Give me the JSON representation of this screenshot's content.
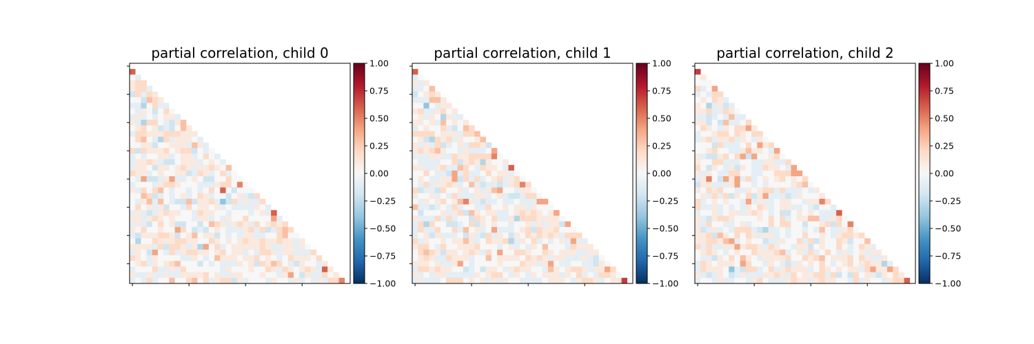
{
  "chart_data": [
    {
      "type": "heatmap",
      "title": "partial correlation, child 0",
      "matrix_size": 39,
      "shape": "strictly lower triangular",
      "x_ticks": [
        0,
        10,
        20,
        30
      ],
      "y_ticks": [
        0,
        5,
        10,
        15,
        20,
        25,
        30,
        35
      ],
      "rows": [
        "L",
        "FE",
        "GHH",
        "GHHE",
        "DHEHG",
        "FFDIHG",
        "EECFHEE",
        "FEGFDFHF",
        "EGEFEFGGE",
        "GECHHFEDGI",
        "FGHFGDEDFIG",
        "EHHGGGHHHGGG",
        "FHIFECHEGGGFE",
        "FFGGDFFGGGEIGE",
        "HDHGGGHFGHHDFEF",
        "EFEFFGGEFGGEFHFE",
        "EGGHGEDDFGGGEFGFE",
        "EGGFDGGFGHGEGGHGFI",
        "HGGEFGFFGGDEHGEFHEF",
        "FEJDDEGJEEFGFDDFFHFF",
        "EFFFEGHHGFFFEEEGHHFKF",
        "GEHFHIFEFFEFEFHFLFDFFF",
        "FFIHDEFEFGEFHGEFFDFGEDH",
        "FEGIEIFEDDIDGGHEBDHEGEEH",
        "FHFGEGDFFEHFGGFGEFEEEEGFE",
        "EGEDEGHGGFFEHGGFFEFFFEFGEL",
        "GGEGHGFGFFFEGGEFEGFFHFFFFJE",
        "EGEDFHFGDDFFDFIHGEGHGEHFGHGH",
        "GFHFFGFFJHFDEDFGFEEEGHEHDEHIH",
        "EDGGGHHGDFGIFGGDFEFEGGEEFFHIFF",
        "FCFFHGGGHHGGFFHGFGFGHGGHGGHGGEG",
        "GGGGEHDHHGEGCJFHEFGGGGGHGEEGGEGF",
        "EGFDJFEHEGHHGGFGHFGGEFEHHGEGGEEEH",
        "HGFEGFFFFEEGFEFIGGGFGGHFGFEFHGGGFH",
        "FGHEGFGHIFFFDFEFEEEGFGDHGIHFEDGFFEG",
        "EFFFHEEGEHFFFFFFEGFFFGFFHGEHGFGHGELG",
        "GEEGEEGEEGGGGHFGEEGGFFFGFFEGJFDGEEHFG",
        "EFEHEFFIFFHIFHEGHHDGEFFFEGFFEGEFEGEHHK"
      ]
    },
    {
      "type": "heatmap",
      "title": "partial correlation, child 1",
      "matrix_size": 39,
      "shape": "strictly lower triangular",
      "x_ticks": [
        0,
        10,
        20,
        30
      ],
      "y_ticks": [
        0,
        5,
        10,
        15,
        20,
        25,
        30,
        35
      ],
      "rows": [
        "L",
        "EF",
        "GEG",
        "EEFI",
        "DFGHG",
        "EEEIIG",
        "FFBFEGG",
        "GHEEGHFG",
        "FGEGFCGEE",
        "GGFGEIFGFG",
        "EFGFFHEDFIH",
        "HHHHFGGGEHHI",
        "FGDCHGHEGFFGI",
        "GEGEHDEFGEHHGD",
        "GHGHIGFFEGEEEFJ",
        "EEEGGEEHGGHHHHKF",
        "FEEEEFFHDGHGCGFFG",
        "GGEEGHEEIHFEHGGFEL",
        "FFHFEEDJEHEEFHFGGEF",
        "FGFEEGGJDHEHEFGHEGHF",
        "FEHEGGHGEFIEDEEDEGHKH",
        "HDEEDHFFGEFGEGIJFFEGGF",
        "GFFGEFEHEEEGGEFGEDDEHHF",
        "FEGFGHFGIKGEDEEFEEFEEEJJ",
        "IEEDEFEHEFFEEHFFGFGGEGFFF",
        "FDFFFGEGHDIGFGGEEFGHGHGFGJ",
        "GEEEHEHEFFDHGFHEEGCHHHGGGGF",
        "EHCHFFDDEFHDGFGFFEFFGEGEGGDJ",
        "EHEEHFFHEIFGEFJEEEFGHDHGGHFFF",
        "EFGDGEEEFDGEDHEGFDGFHGHGHGEHHH",
        "HEGFFGFGGIGEFHGGHCEGFHEFEFGEJEE",
        "GHHFEHFFGGGHFFFEFGEFEGFIFFFEHGGG",
        "FHIHGDGGFGHGEHFJFFHHGFFHGFGGGEEGG",
        "FGHGEEHGGGEFFIFGGGGFHGHGEGGEEEGEDF",
        "GGGFGEEGJFEFFFFGFFFHGGEGJFEEFFEEDGF",
        "EHHGHGGFFDEFDGGFEGHGGFFEIGFGHHGEGGJH",
        "GEFEGGEEEEEGFGHHFEGFEGFGGGEGFHEFEHHGF",
        "EGEEEFHHHFGFGEGEGFFEEEEFGGGFEGHHGEFGGM"
      ]
    },
    {
      "type": "heatmap",
      "title": "partial correlation, child 2",
      "matrix_size": 39,
      "shape": "strictly lower triangular",
      "x_ticks": [
        0,
        10,
        20,
        30
      ],
      "y_ticks": [
        0,
        5,
        10,
        15,
        20,
        25,
        30,
        35
      ],
      "rows": [
        "M",
        "FG",
        "FFF",
        "HEFJ",
        "EFEHH",
        "FGFHGE",
        "GFCEGDE",
        "GGHEEHGF",
        "EEDEFEIEE",
        "GGDFDIEEFH",
        "FHGFEGFHHJG",
        "EFFGHHFHGFHH",
        "EGHEGGHEGFEGF",
        "FFFDHEEEFHFJGH",
        "FFGHFFEEGIGGFEJ",
        "GEDDGHFHJDJFFGHF",
        "GFFHHEEEFFEEGGEEH",
        "HFDGFEGDGFEEHGGFEJ",
        "GEGFEEHHFFEEFFHHHJJ",
        "EGKFDJGJEHEFGFGHFGFH",
        "DGGEEEGJFFEFEFFFFGHIF",
        "GFHGHFFEEGFGHHEHEEEFEG",
        "FGEHEHDGFHDGJEEEDEGFFFG",
        "HEFGFGFFEJEGEEFGGFFEGGKH",
        "HEEGEFEFEGFHGEFGGEEFEDFFE",
        "EFFGEFGGEGHGFEFDDFGFGFEEEL",
        "GEDGHHGFFFFGFHFHEFGGIIEEGH",
        "GEHFFEEFGEFFFHFHHFFDFFGHDHFK",
        "GDEGEFEHHHEDCEEFEFFEFEIFEEGHF",
        "GGHDIGFHFHGEGGEFEFFHFFGFEGHHGH",
        "GGHHGIJEFGFFDEEGFFHEHDGFFHGDFFI",
        "HEHEEGGJGHHGEHGFFEGGDFGFFHFEFHGE",
        "FGHGFEFGFFHGGGHIEFGEHEFHFEGEFGEGG",
        "FEEDGFHFIGFEGGGGHFFHGHIFGGGHFHGEEG",
        "EHGFGGGFJHFFEGFEDEGFGFHFEFGHFGHGGCE",
        "EHGGGFBEDHHEFHEGHGGGEFHGFGFGGEHJGGJH",
        "GEDEGFDEGEEEGGHGEHFGGHHEHDFDHFGEDGFHG",
        "EFFEGEEFFEGHFEEEGHGGEGHGGFFEHEGFFEGHHL"
      ]
    }
  ],
  "value_levels": {
    "A": -0.5,
    "B": -0.4,
    "C": -0.3,
    "D": -0.2,
    "E": -0.1,
    "F": 0.0,
    "G": 0.1,
    "H": 0.2,
    "I": 0.3,
    "J": 0.4,
    "K": 0.5,
    "L": 0.6,
    "M": 0.7
  },
  "colorbar": {
    "colormap": "RdBu_r",
    "range": [
      -1.0,
      1.0
    ],
    "tick_labels": [
      "−1.00",
      "−0.75",
      "−0.50",
      "−0.25",
      "0.00",
      "0.25",
      "0.50",
      "0.75",
      "1.00"
    ],
    "tick_values": [
      -1.0,
      -0.75,
      -0.5,
      -0.25,
      0.0,
      0.25,
      0.5,
      0.75,
      1.0
    ],
    "colors": [
      "#053061",
      "#2166ac",
      "#4393c3",
      "#92c5de",
      "#d1e5f0",
      "#f7f7f7",
      "#fddbc7",
      "#f4a582",
      "#d6604d",
      "#b2182b",
      "#67001f"
    ]
  }
}
